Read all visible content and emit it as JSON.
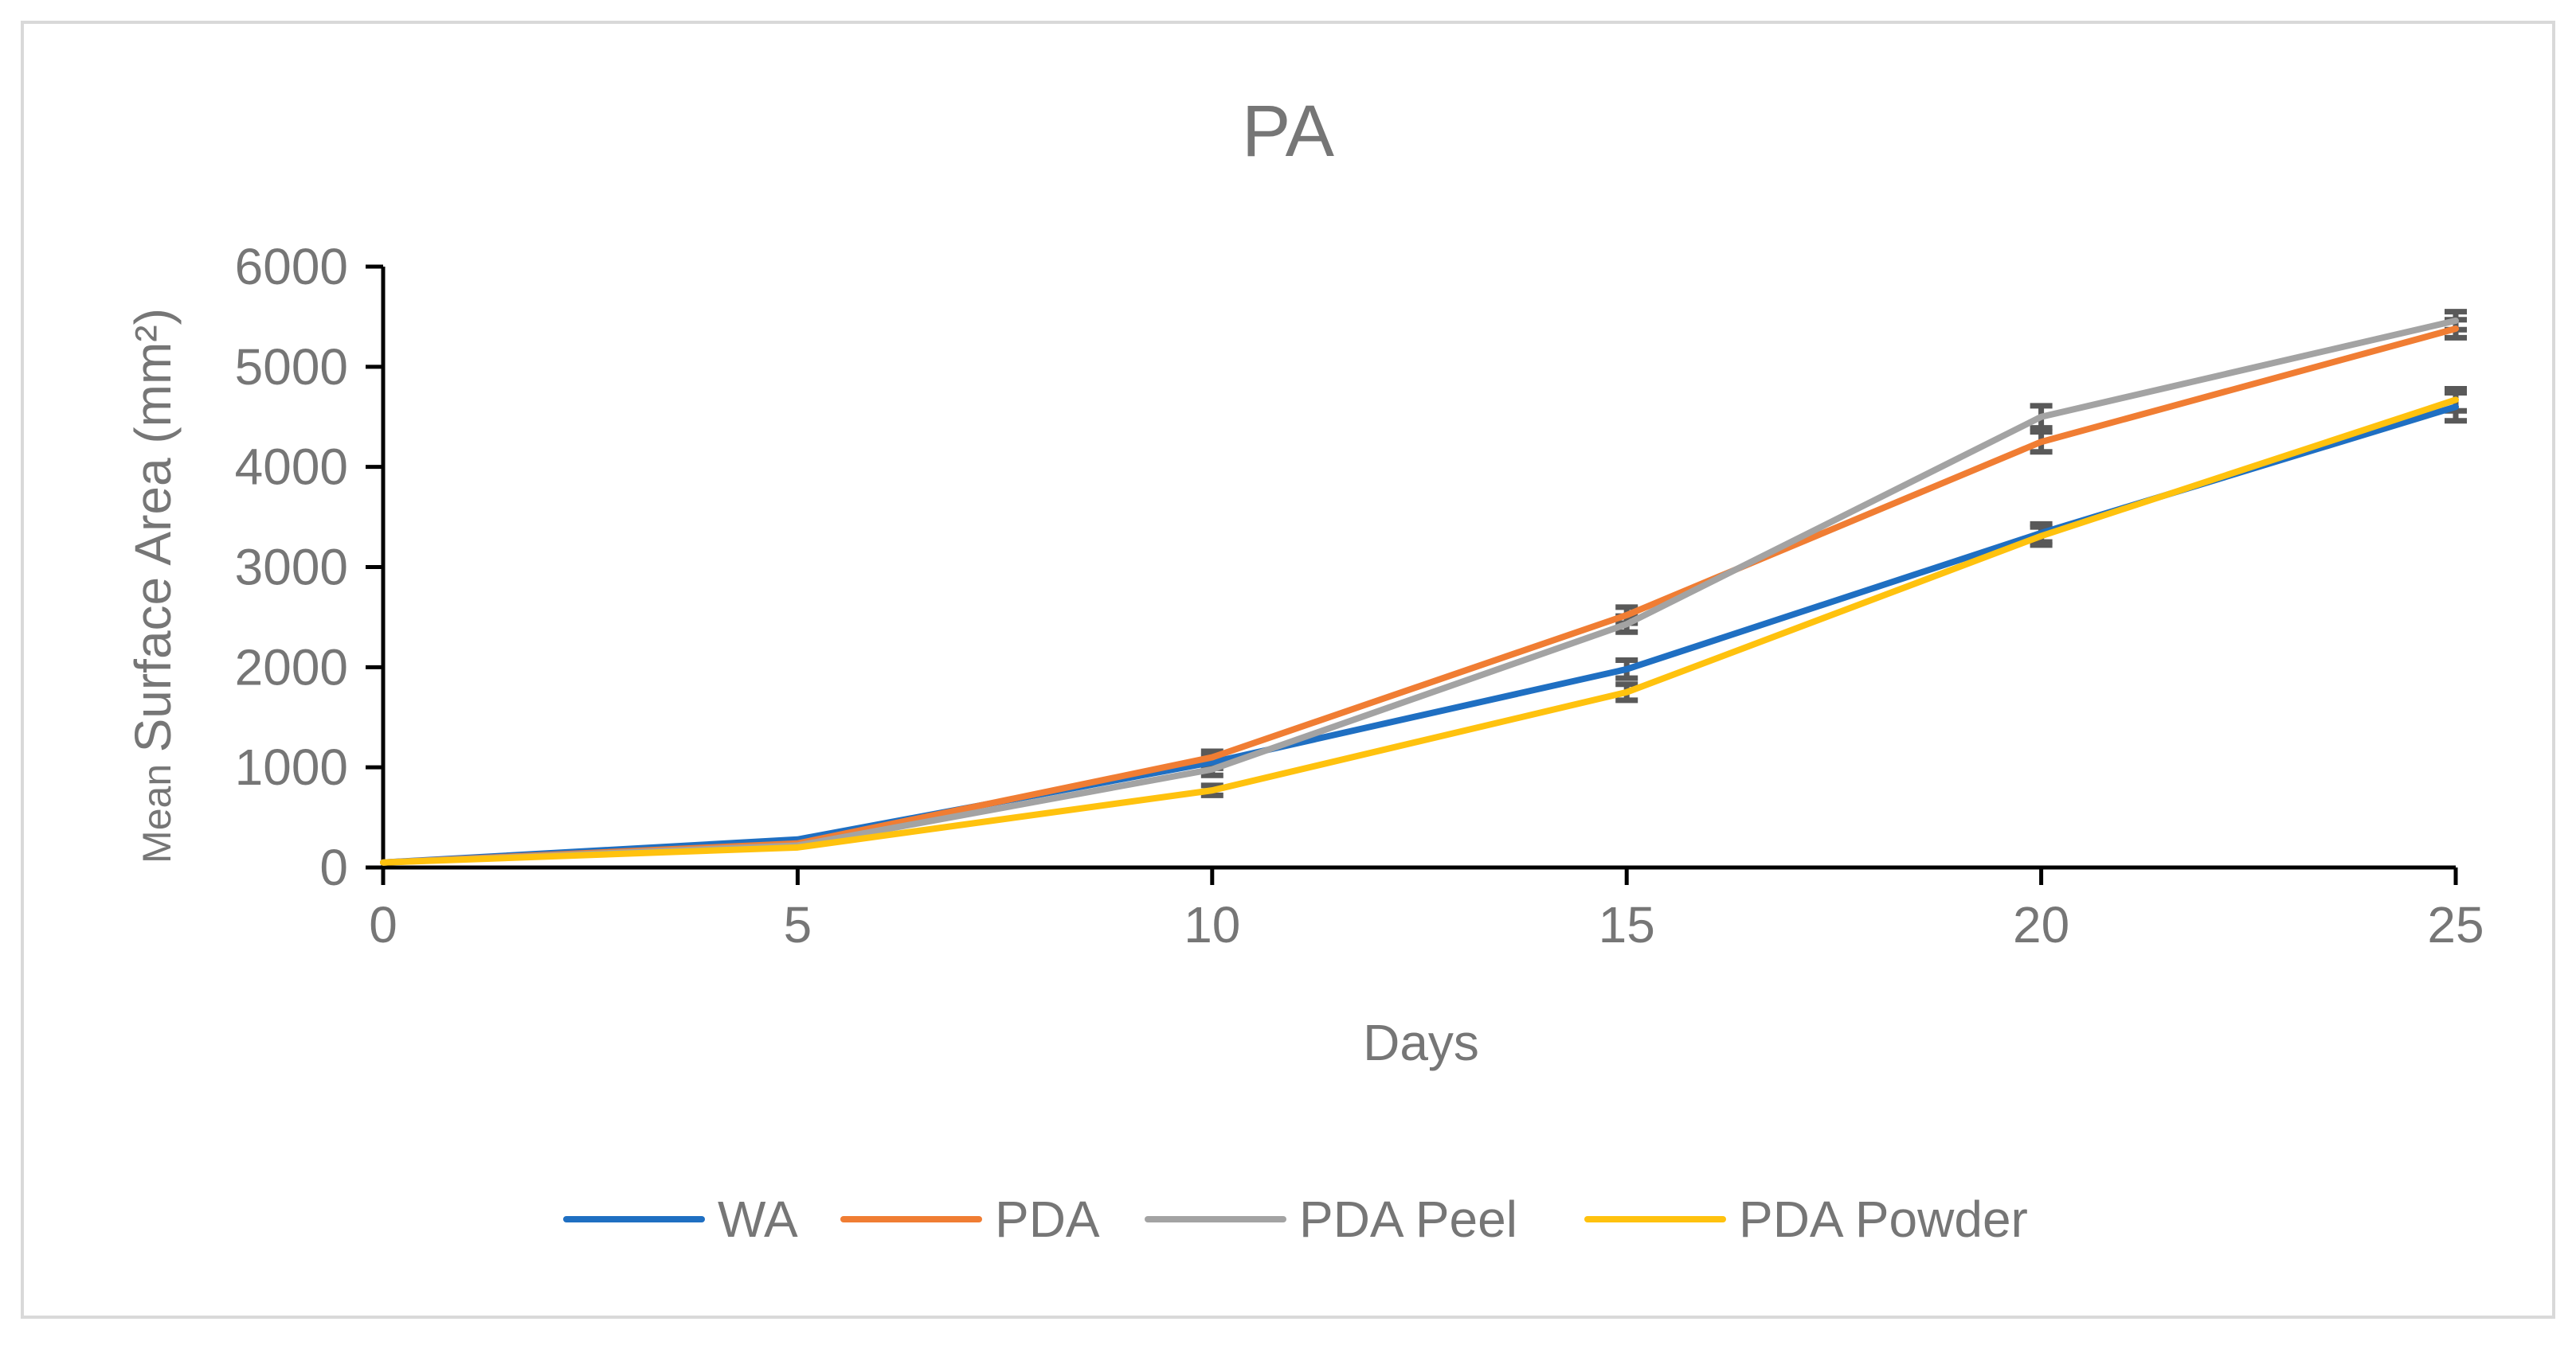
{
  "chart_data": {
    "type": "line",
    "title": "PA",
    "xlabel": "Days",
    "ylabel_prefix": "Mean",
    "ylabel_main": "Surface Area (mm²)",
    "x": [
      0,
      5,
      10,
      15,
      20,
      25
    ],
    "xlim": [
      0,
      25
    ],
    "ylim": [
      0,
      6000
    ],
    "xticks": [
      "0",
      "5",
      "10",
      "15",
      "20",
      "25"
    ],
    "yticks": [
      "0",
      "1000",
      "2000",
      "3000",
      "4000",
      "5000",
      "6000"
    ],
    "grid": false,
    "legend_position": "bottom",
    "series": [
      {
        "name": "WA",
        "color": "#1F6FC2",
        "values": [
          50,
          280,
          1050,
          1980,
          3340,
          4600
        ],
        "errors": [
          0,
          0,
          60,
          90,
          90,
          140
        ]
      },
      {
        "name": "PDA",
        "color": "#F07D33",
        "values": [
          50,
          240,
          1100,
          2520,
          4250,
          5380
        ],
        "errors": [
          0,
          0,
          60,
          80,
          100,
          90
        ]
      },
      {
        "name": "PDA Peel",
        "color": "#A3A3A3",
        "values": [
          50,
          220,
          980,
          2430,
          4500,
          5460
        ],
        "errors": [
          0,
          0,
          60,
          80,
          110,
          90
        ]
      },
      {
        "name": "PDA Powder",
        "color": "#FFC20E",
        "values": [
          50,
          200,
          770,
          1750,
          3310,
          4670
        ],
        "errors": [
          0,
          0,
          50,
          80,
          90,
          110
        ]
      }
    ]
  }
}
